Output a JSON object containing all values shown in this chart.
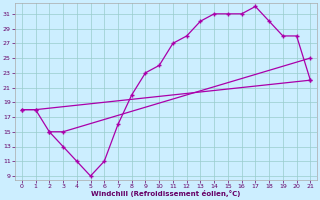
{
  "xlabel": "Windchill (Refroidissement éolien,°C)",
  "bg_color": "#cceeff",
  "grid_color": "#99cccc",
  "line_color": "#aa00aa",
  "line1_x": [
    0,
    1,
    21
  ],
  "line1_y": [
    18,
    18,
    22
  ],
  "line2_x": [
    2,
    3,
    21
  ],
  "line2_y": [
    15,
    15,
    25
  ],
  "line3_x": [
    0,
    1,
    2,
    3,
    4,
    5,
    6,
    7,
    8,
    9,
    10,
    11,
    12,
    13,
    14,
    15,
    16,
    17,
    18,
    19,
    20,
    21
  ],
  "line3_y": [
    18,
    18,
    15,
    13,
    11,
    9,
    11,
    16,
    20,
    23,
    24,
    27,
    28,
    30,
    31,
    31,
    31,
    32,
    30,
    28,
    28,
    22
  ],
  "ylim": [
    9,
    32
  ],
  "xlim": [
    0,
    21
  ],
  "yticks": [
    9,
    11,
    13,
    15,
    17,
    19,
    21,
    23,
    25,
    27,
    29,
    31
  ],
  "xticks": [
    0,
    1,
    2,
    3,
    4,
    5,
    6,
    7,
    8,
    9,
    10,
    11,
    12,
    13,
    14,
    15,
    16,
    17,
    18,
    19,
    20,
    21
  ]
}
